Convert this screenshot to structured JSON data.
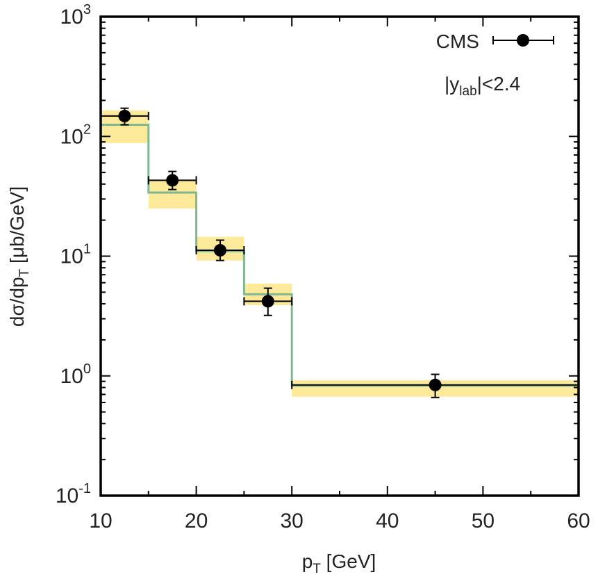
{
  "chart_data": {
    "type": "scatter",
    "title": "",
    "xlabel": {
      "base": "p",
      "sub": "T",
      "rest": " [GeV]"
    },
    "ylabel": {
      "pre": "dσ/dp",
      "sub": "T",
      "rest": " [μb/GeV]"
    },
    "xlim": [
      10,
      60
    ],
    "ylim": [
      0.1,
      1000
    ],
    "yscale": "log",
    "xticks": [
      10,
      20,
      30,
      40,
      50,
      60
    ],
    "xtick_labels": [
      "10",
      "20",
      "30",
      "40",
      "50",
      "60"
    ],
    "yticks": [
      {
        "value": 0.1,
        "base": "10",
        "exp": "-1"
      },
      {
        "value": 1,
        "base": "10",
        "exp": "0"
      },
      {
        "value": 10,
        "base": "10",
        "exp": "1"
      },
      {
        "value": 100,
        "base": "10",
        "exp": "2"
      },
      {
        "value": 1000,
        "base": "10",
        "exp": "3"
      }
    ],
    "legend": {
      "label": "CMS",
      "position": "top-right"
    },
    "annotation": {
      "pre": "|y",
      "sub": "lab",
      "post": "|<2.4"
    },
    "colors": {
      "band": "#fde99a",
      "theory_line": "#7fb890",
      "data": "#000000",
      "frame": "#000000"
    },
    "series": [
      {
        "name": "CMS",
        "kind": "data",
        "points": [
          {
            "x": 12.5,
            "xlo": 10,
            "xhi": 15,
            "y": 148,
            "ylo": 125,
            "yhi": 172
          },
          {
            "x": 17.5,
            "xlo": 15,
            "xhi": 20,
            "y": 43,
            "ylo": 36,
            "yhi": 51
          },
          {
            "x": 22.5,
            "xlo": 20,
            "xhi": 25,
            "y": 11.2,
            "ylo": 9.2,
            "yhi": 13.6
          },
          {
            "x": 27.5,
            "xlo": 25,
            "xhi": 30,
            "y": 4.2,
            "ylo": 3.2,
            "yhi": 5.4
          },
          {
            "x": 45,
            "xlo": 30,
            "xhi": 60,
            "y": 0.84,
            "ylo": 0.66,
            "yhi": 1.03
          }
        ]
      },
      {
        "name": "Theory",
        "kind": "step_band",
        "bins": [
          {
            "xlo": 10,
            "xhi": 15,
            "y": 125,
            "ylo": 88,
            "yhi": 165
          },
          {
            "xlo": 15,
            "xhi": 20,
            "y": 34,
            "ylo": 25,
            "yhi": 43
          },
          {
            "xlo": 20,
            "xhi": 25,
            "y": 11,
            "ylo": 9.2,
            "yhi": 14.5
          },
          {
            "xlo": 25,
            "xhi": 30,
            "y": 4.8,
            "ylo": 3.9,
            "yhi": 5.9
          },
          {
            "xlo": 30,
            "xhi": 60,
            "y": 0.83,
            "ylo": 0.67,
            "yhi": 0.92
          }
        ]
      }
    ]
  }
}
